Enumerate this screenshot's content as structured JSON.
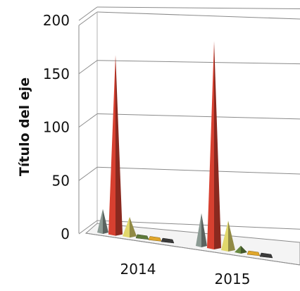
{
  "chart_data": {
    "type": "bar",
    "style": "3d-cones",
    "categories": [
      "2014",
      "2015"
    ],
    "ylabel": "Título del eje",
    "xlabel": "",
    "title": "",
    "ylim": [
      0,
      200
    ],
    "yticks": [
      "0",
      "50",
      "100",
      "150",
      "200"
    ],
    "grid": true,
    "legend": "none",
    "series": [
      {
        "color": "#7d8a84",
        "values": [
          22,
          30
        ]
      },
      {
        "color": "#c0392b",
        "values": [
          168,
          190
        ]
      },
      {
        "color": "#c9c060",
        "values": [
          18,
          27
        ]
      },
      {
        "color": "#5d7a3a",
        "values": [
          4,
          6
        ]
      },
      {
        "color": "#e0a62a",
        "values": [
          2,
          3
        ]
      },
      {
        "color": "#3a3a3a",
        "values": [
          1,
          1
        ]
      }
    ]
  }
}
